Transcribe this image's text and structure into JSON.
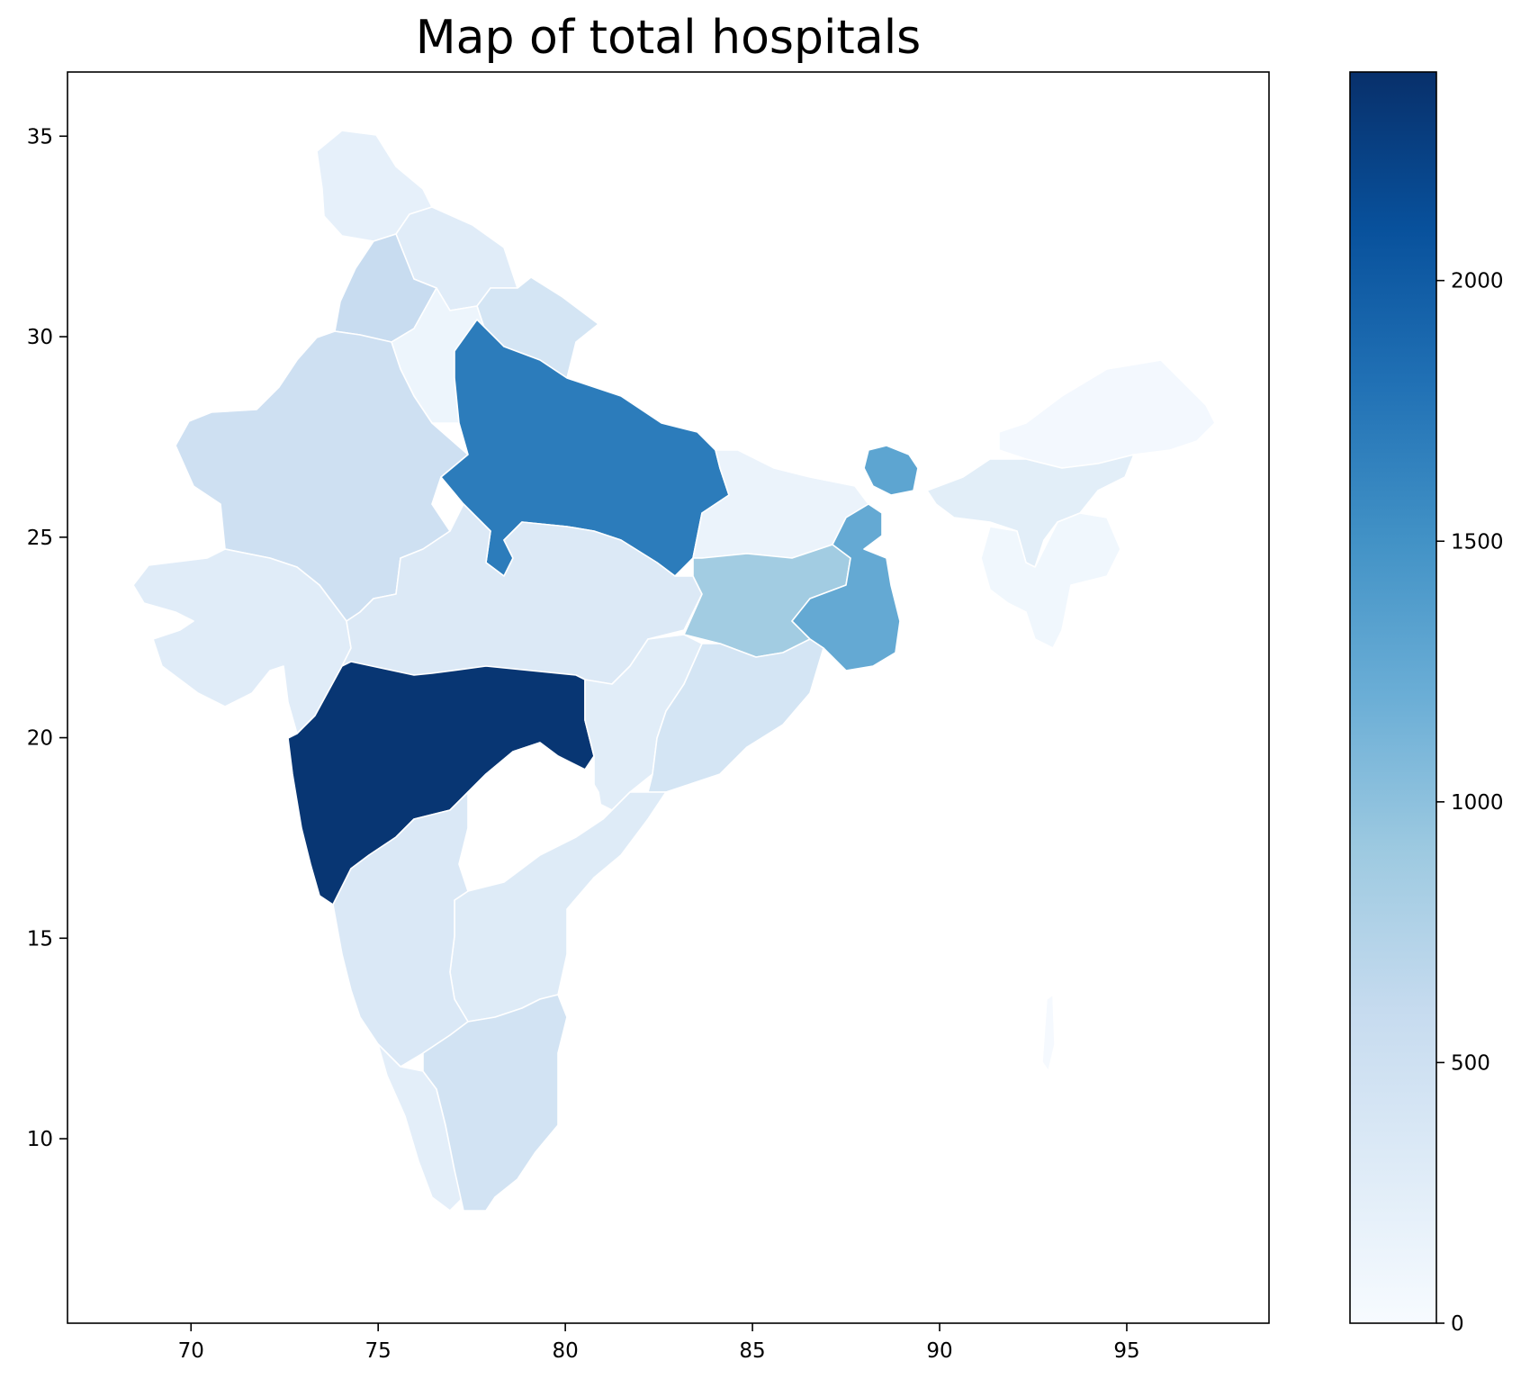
{
  "title": "Map of total hospitals",
  "chart_data": {
    "type": "choropleth",
    "title": "Map of total hospitals",
    "xlabel": "",
    "ylabel": "",
    "xlim": [
      66.7,
      98.8
    ],
    "ylim": [
      5.4,
      36.6
    ],
    "xticks": [
      70,
      75,
      80,
      85,
      90,
      95
    ],
    "yticks": [
      10,
      15,
      20,
      25,
      30,
      35
    ],
    "xtick_labels": [
      "70",
      "75",
      "80",
      "85",
      "90",
      "95"
    ],
    "ytick_labels": [
      "10",
      "15",
      "20",
      "25",
      "30",
      "35"
    ],
    "grid": false,
    "colormap": "Blues",
    "colorbar": {
      "min": 0,
      "max": 2400,
      "ticks": [
        0,
        500,
        1000,
        1500,
        2000
      ],
      "tick_labels": [
        "0",
        "500",
        "1000",
        "1500",
        "2000"
      ]
    },
    "regions": [
      {
        "id": "jk",
        "value": 200
      },
      {
        "id": "hp",
        "value": 280
      },
      {
        "id": "pb",
        "value": 580
      },
      {
        "id": "hr",
        "value": 120
      },
      {
        "id": "uk",
        "value": 420
      },
      {
        "id": "rj",
        "value": 500
      },
      {
        "id": "up",
        "value": 1700
      },
      {
        "id": "gj",
        "value": 280
      },
      {
        "id": "mp",
        "value": 330
      },
      {
        "id": "br",
        "value": 150
      },
      {
        "id": "sk",
        "value": 1300
      },
      {
        "id": "jh",
        "value": 870
      },
      {
        "id": "wb",
        "value": 1250
      },
      {
        "id": "ne",
        "value": 50
      },
      {
        "id": "as",
        "value": 250
      },
      {
        "id": "mz",
        "value": 80
      },
      {
        "id": "mh",
        "value": 2350
      },
      {
        "id": "cg",
        "value": 260
      },
      {
        "id": "od",
        "value": 420
      },
      {
        "id": "tg",
        "value": 0
      },
      {
        "id": "ap",
        "value": 300
      },
      {
        "id": "ka",
        "value": 350
      },
      {
        "id": "kl",
        "value": 240
      },
      {
        "id": "tn",
        "value": 450
      },
      {
        "id": "an",
        "value": 30
      }
    ]
  }
}
